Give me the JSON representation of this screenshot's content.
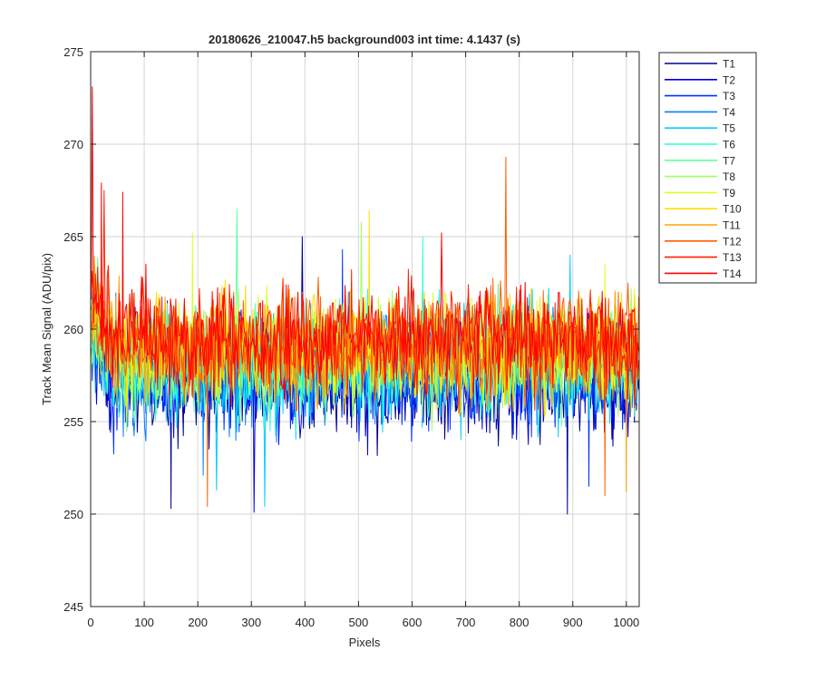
{
  "figure": {
    "background": "#ffffff"
  },
  "chart_data": {
    "type": "line",
    "title": "20180626_210047.h5  background003   int time: 4.1437 (s)",
    "xlabel": "Pixels",
    "ylabel": "Track Mean Signal (ADU/pix)",
    "xlim": [
      0,
      1024
    ],
    "ylim": [
      245,
      275
    ],
    "xticks": [
      0,
      100,
      200,
      300,
      400,
      500,
      600,
      700,
      800,
      900,
      1000
    ],
    "yticks": [
      245,
      250,
      255,
      260,
      265,
      270,
      275
    ],
    "grid": true,
    "legend_position": "outside-top-right",
    "note": "Each series is a noisy trace over pixels 1-1024; per-series baseline mean, noise amplitude and visible spikes (pixel, value) are listed. Trace points are sampled from these statistics.",
    "series": [
      {
        "name": "T1",
        "color": "#00008f",
        "mean": 257.3,
        "noise": 1.5,
        "spikes": [
          [
            395,
            265.0
          ],
          [
            890,
            250.0
          ],
          [
            150,
            250.3
          ]
        ]
      },
      {
        "name": "T2",
        "color": "#0000df",
        "mean": 257.4,
        "noise": 1.5,
        "spikes": [
          [
            305,
            250.1
          ],
          [
            517,
            253.2
          ]
        ]
      },
      {
        "name": "T3",
        "color": "#0030ff",
        "mean": 257.6,
        "noise": 1.5,
        "spikes": [
          [
            470,
            264.3
          ],
          [
            930,
            251.5
          ]
        ]
      },
      {
        "name": "T4",
        "color": "#0080ff",
        "mean": 257.8,
        "noise": 1.5,
        "spikes": [
          [
            210,
            252.1
          ]
        ]
      },
      {
        "name": "T5",
        "color": "#00cfff",
        "mean": 258.0,
        "noise": 1.5,
        "spikes": [
          [
            235,
            251.3
          ],
          [
            325,
            250.4
          ],
          [
            895,
            264.0
          ]
        ]
      },
      {
        "name": "T6",
        "color": "#20ffdf",
        "mean": 258.2,
        "noise": 1.5,
        "spikes": [
          [
            620,
            265.0
          ]
        ]
      },
      {
        "name": "T7",
        "color": "#60ff9f",
        "mean": 258.4,
        "noise": 1.5,
        "spikes": [
          [
            273,
            266.5
          ]
        ]
      },
      {
        "name": "T8",
        "color": "#9fff60",
        "mean": 258.6,
        "noise": 1.5,
        "spikes": [
          [
            505,
            265.8
          ]
        ]
      },
      {
        "name": "T9",
        "color": "#dfff20",
        "mean": 258.8,
        "noise": 1.4,
        "spikes": [
          [
            190,
            265.2
          ],
          [
            960,
            263.5
          ]
        ]
      },
      {
        "name": "T10",
        "color": "#ffdf00",
        "mean": 259.0,
        "noise": 1.4,
        "spikes": [
          [
            520,
            266.4
          ]
        ]
      },
      {
        "name": "T11",
        "color": "#ffa000",
        "mean": 259.1,
        "noise": 1.4,
        "spikes": [
          [
            1000,
            251.2
          ]
        ]
      },
      {
        "name": "T12",
        "color": "#ff6000",
        "mean": 259.2,
        "noise": 1.4,
        "spikes": [
          [
            775,
            269.3
          ],
          [
            218,
            250.4
          ],
          [
            960,
            251.0
          ]
        ]
      },
      {
        "name": "T13",
        "color": "#ff2000",
        "mean": 259.4,
        "noise": 1.4,
        "spikes": [
          [
            25,
            267.5
          ]
        ]
      },
      {
        "name": "T14",
        "color": "#ff0000",
        "mean": 259.5,
        "noise": 1.4,
        "spikes": [
          [
            3,
            273.1
          ],
          [
            20,
            267.9
          ],
          [
            60,
            267.4
          ],
          [
            655,
            265.2
          ]
        ]
      }
    ]
  }
}
